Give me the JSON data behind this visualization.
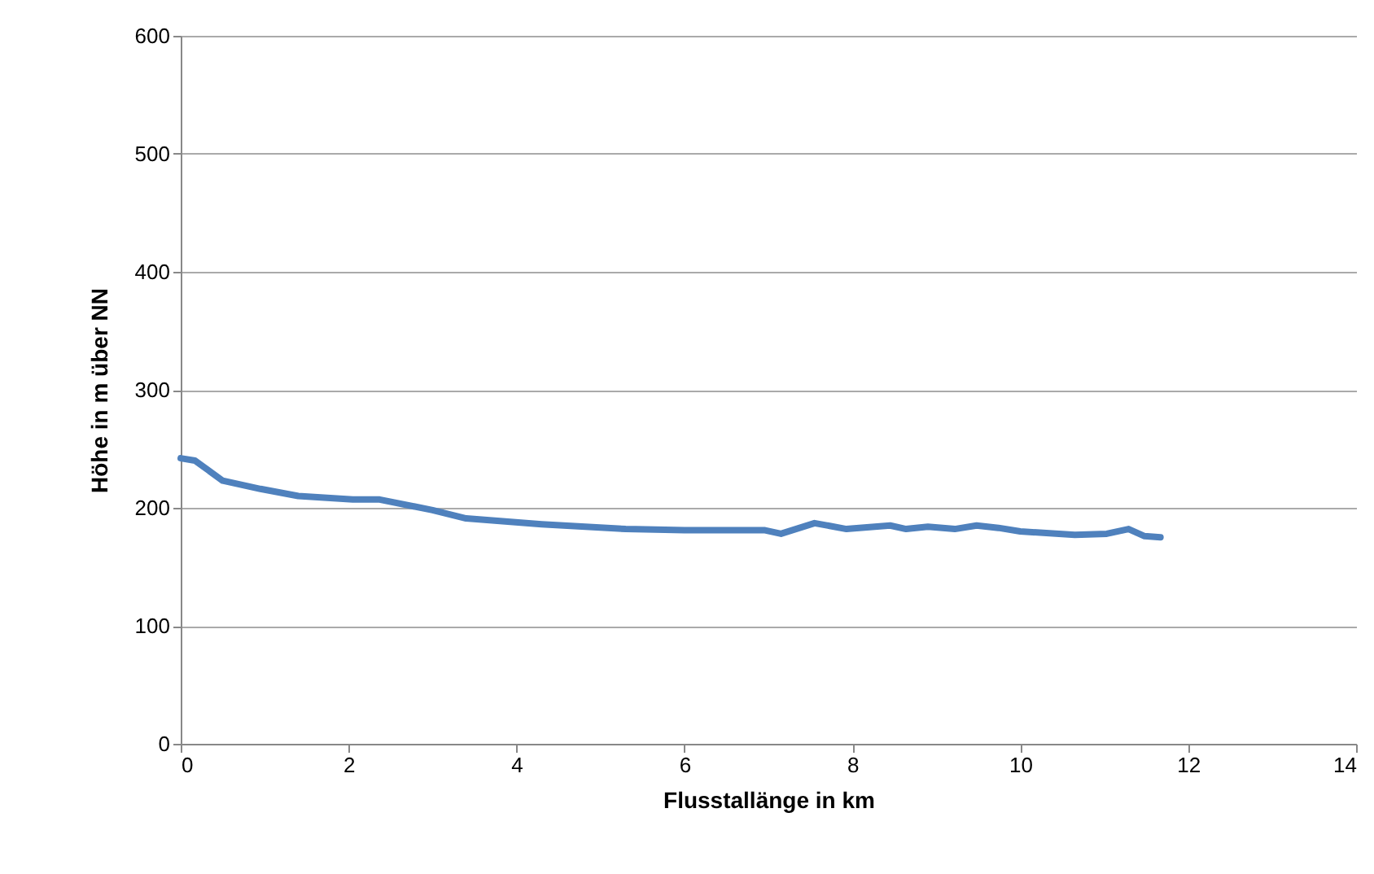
{
  "chart_data": {
    "type": "line",
    "xlabel": "Flusstallänge in km",
    "ylabel": "Höhe in m über NN",
    "x": [
      0,
      0.17,
      0.5,
      0.95,
      1.4,
      2.05,
      2.37,
      3.0,
      3.4,
      4.3,
      5.3,
      6.0,
      6.96,
      7.15,
      7.55,
      7.93,
      8.45,
      8.64,
      8.9,
      9.22,
      9.48,
      9.74,
      10.0,
      10.65,
      11.03,
      11.29,
      11.48,
      11.67
    ],
    "series": [
      {
        "color": "#4f81bd",
        "values": [
          242,
          240,
          223,
          216,
          210,
          207,
          207,
          198,
          191,
          186,
          182,
          181,
          181,
          178,
          187,
          182,
          185,
          182,
          184,
          182,
          185,
          183,
          180,
          177,
          178,
          182,
          176,
          175
        ]
      }
    ],
    "xlim": [
      0,
      14
    ],
    "xticks": [
      0,
      2,
      4,
      6,
      8,
      10,
      12,
      14
    ],
    "ylim": [
      0,
      600
    ],
    "yticks": [
      0,
      100,
      200,
      300,
      400,
      500,
      600
    ],
    "grid": "y",
    "line_style": "solid"
  }
}
